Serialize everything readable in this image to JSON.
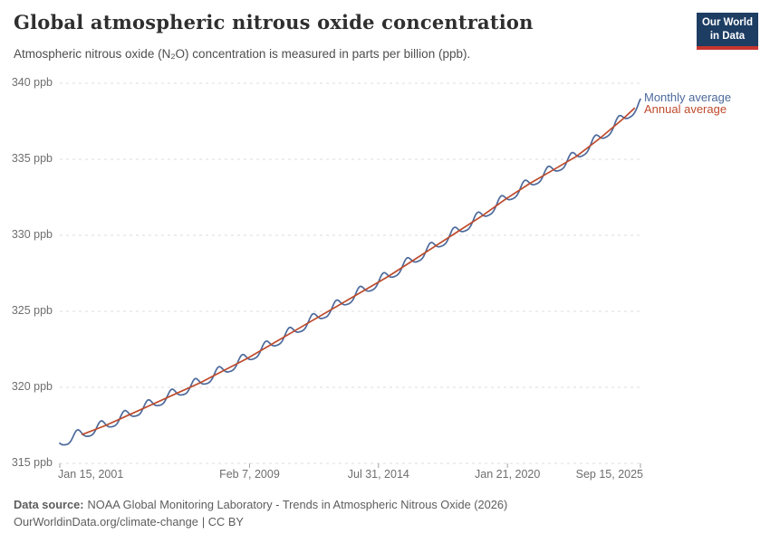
{
  "header": {
    "logo": {
      "line1": "Our World",
      "line2": "in Data",
      "bg_color": "#1d3d63",
      "bar_color": "#c7362f"
    }
  },
  "chart_data": {
    "type": "line",
    "title": "Global atmospheric nitrous oxide concentration",
    "subtitle": "Atmospheric nitrous oxide (N₂O) concentration is measured in parts per billion (ppb).",
    "unit": "ppb",
    "ylim": [
      315,
      340
    ],
    "y_ticks": [
      315,
      320,
      325,
      330,
      335,
      340
    ],
    "y_tick_suffix": " ppb",
    "x_domain": [
      2001.04,
      2025.71
    ],
    "x_ticks": [
      {
        "label": "Jan 15, 2001",
        "t": 2001.04,
        "align": "start"
      },
      {
        "label": "Feb 7, 2009",
        "t": 2009.1,
        "align": "middle"
      },
      {
        "label": "Jul 31, 2014",
        "t": 2014.58,
        "align": "middle"
      },
      {
        "label": "Jan 21, 2020",
        "t": 2020.06,
        "align": "middle"
      },
      {
        "label": "Sep 15, 2025",
        "t": 2025.71,
        "align": "end"
      }
    ],
    "grid": "dashed",
    "legend_position": "right-of-line-ends",
    "series": [
      {
        "name": "Monthly average",
        "color": "#4C6A9C",
        "kind": "monthly",
        "start": 2001.04,
        "end": 2025.71
      },
      {
        "name": "Annual average",
        "color": "#BE4A2B",
        "kind": "annual",
        "start": 2002,
        "end": 2025.45
      }
    ],
    "annual_anchors": {
      "years": [
        2001,
        2002,
        2003,
        2004,
        2005,
        2006,
        2007,
        2008,
        2009,
        2010,
        2011,
        2012,
        2013,
        2014,
        2015,
        2016,
        2017,
        2018,
        2019,
        2020,
        2021,
        2022,
        2023,
        2024,
        2025
      ],
      "values": [
        316.35,
        316.9,
        317.5,
        318.2,
        318.9,
        319.6,
        320.3,
        321.1,
        321.9,
        322.8,
        323.7,
        324.6,
        325.5,
        326.4,
        327.3,
        328.3,
        329.3,
        330.3,
        331.3,
        332.4,
        333.4,
        334.3,
        335.2,
        336.4,
        337.7
      ],
      "end_point": {
        "t": 2025.45,
        "value": 338.35
      }
    },
    "seasonal": {
      "amplitude": 0.35,
      "phase": 0.55,
      "amplitude2": 0.07,
      "phase2": 0.15,
      "cycles_per_year": 1,
      "note": "Monthly series oscillates around annual trend, peak ~October, trough ~April, ~0.7 ppb peak-to-trough"
    }
  },
  "footer": {
    "source_label": "Data source:",
    "source_text": "NOAA Global Monitoring Laboratory - Trends in Atmospheric Nitrous Oxide (2026)",
    "link": "OurWorldinData.org/climate-change",
    "license": "| CC BY"
  }
}
